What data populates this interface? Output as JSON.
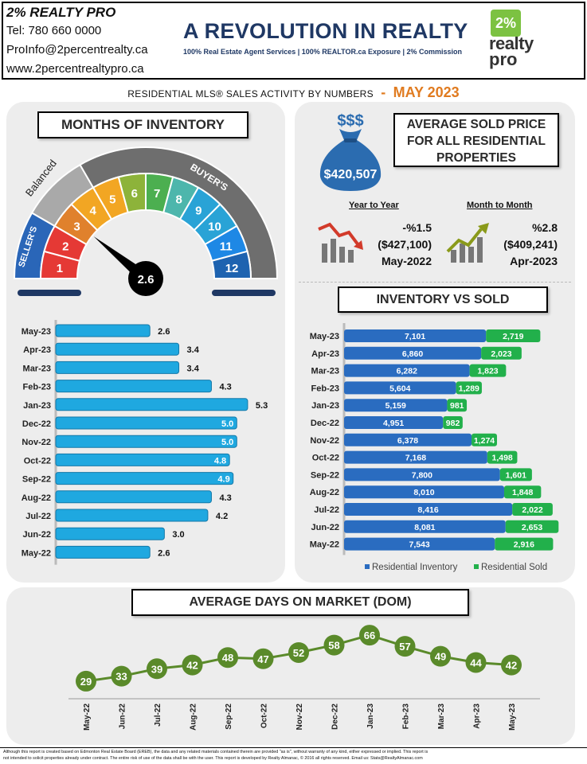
{
  "header": {
    "company": "2% REALTY PRO",
    "phone": "Tel: 780 660 0000",
    "email": "ProInfo@2percentrealty.ca",
    "website": "www.2percentrealtypro.ca",
    "headline": "A REVOLUTION IN REALTY",
    "tagline": "100% Real Estate Agent Services | 100% REALTOR.ca Exposure | 2% Commission",
    "logo_top": "2%",
    "logo_mid": "realty",
    "logo_bot": "pro"
  },
  "subtitle": {
    "text": "RESIDENTIAL MLS® SALES ACTIVITY BY NUMBERS",
    "dash": "-",
    "month": "MAY 2023"
  },
  "months_inventory": {
    "title": "MONTHS OF INVENTORY",
    "gauge": {
      "value": 2.6,
      "value_label": "2.6",
      "segments": [
        "1",
        "2",
        "3",
        "4",
        "5",
        "6",
        "7",
        "8",
        "9",
        "10",
        "11",
        "12"
      ],
      "sellers_label": "SELLER'S",
      "balanced_label": "Balanced",
      "buyers_label": "BUYER'S"
    }
  },
  "avg_price": {
    "title_line1": "AVERAGE  SOLD PRICE",
    "title_line2": "FOR ALL RESIDENTIAL",
    "title_line3": "PROPERTIES",
    "value": "$420,507",
    "bag_symbol": "$$$",
    "yoy": {
      "heading": "Year to Year",
      "change": "-%1.5",
      "value": "($427,100)",
      "period": "May-2022"
    },
    "mom": {
      "heading": "Month to Month",
      "change": "%2.8",
      "value": "($409,241)",
      "period": "Apr-2023"
    }
  },
  "inventory_vs_sold": {
    "title": "INVENTORY VS SOLD"
  },
  "dom": {
    "title": "AVERAGE DAYS ON MARKET (DOM)"
  },
  "colors": {
    "navy": "#1f3864",
    "orange": "#e07b20",
    "green": "#5a8a2a",
    "blue_bar": "#1fa8e0",
    "inv_bar": "#2a6cc0",
    "sold_bar": "#22b04b"
  },
  "footer": {
    "line1": "Although this report is created based on Edmonton Real Estate Board (EREB), the data and any related materials contained therein are provided \"as is\", without warranty of any kind, either expressed or implied. This report is",
    "line2": "not intended to solicit properties already under contract. The entire risk of use of the data shall be with the user. This report is developed by Realty Almanac, © 2016 all rights reserved. Email us: Stats@RealtyAlmanac.com"
  },
  "chart_data": [
    {
      "type": "bar",
      "orientation": "horizontal",
      "categories": [
        "May-23",
        "Apr-23",
        "Mar-23",
        "Feb-23",
        "Jan-23",
        "Dec-22",
        "Nov-22",
        "Oct-22",
        "Sep-22",
        "Aug-22",
        "Jul-22",
        "Jun-22",
        "May-22"
      ],
      "values": [
        2.6,
        3.4,
        3.4,
        4.3,
        5.3,
        5.0,
        5.0,
        4.8,
        4.9,
        4.3,
        4.2,
        3.0,
        2.6
      ],
      "labels": [
        "2.6",
        "3.4",
        "3.4",
        "4.3",
        "5.3",
        "5.0",
        "5.0",
        "4.8",
        "4.9",
        "4.3",
        "4.2",
        "3.0",
        "2.6"
      ],
      "xlim": [
        0,
        5.5
      ]
    },
    {
      "type": "bar",
      "orientation": "horizontal",
      "stacked": true,
      "categories": [
        "May-23",
        "Apr-23",
        "Mar-23",
        "Feb-23",
        "Jan-23",
        "Dec-22",
        "Nov-22",
        "Oct-22",
        "Sep-22",
        "Aug-22",
        "Jul-22",
        "Jun-22",
        "May-22"
      ],
      "series": [
        {
          "name": "Residential Inventory",
          "values": [
            7101,
            6860,
            6282,
            5604,
            5159,
            4951,
            6378,
            7168,
            7800,
            8010,
            8416,
            8081,
            7543
          ]
        },
        {
          "name": "Residential Sold",
          "values": [
            2719,
            2023,
            1823,
            1289,
            981,
            982,
            1274,
            1498,
            1601,
            1848,
            2022,
            2653,
            2916
          ]
        }
      ],
      "labels_inventory": [
        "7,101",
        "6,860",
        "6,282",
        "5,604",
        "5,159",
        "4,951",
        "6,378",
        "7,168",
        "7,800",
        "8,010",
        "8,416",
        "8,081",
        "7,543"
      ],
      "labels_sold": [
        "2,719",
        "2,023",
        "1,823",
        "1,289",
        "981",
        "982",
        "1,274",
        "1,498",
        "1,601",
        "1,848",
        "2,022",
        "2,653",
        "2,916"
      ],
      "legend": "bottom",
      "xlim": [
        0,
        11000
      ]
    },
    {
      "type": "line",
      "categories": [
        "May-22",
        "Jun-22",
        "Jul-22",
        "Aug-22",
        "Sep-22",
        "Oct-22",
        "Nov-22",
        "Dec-22",
        "Jan-23",
        "Feb-23",
        "Mar-23",
        "Apr-23",
        "May-23"
      ],
      "values": [
        29,
        33,
        39,
        42,
        48,
        47,
        52,
        58,
        66,
        57,
        49,
        44,
        42
      ],
      "ylim": [
        20,
        75
      ]
    }
  ]
}
